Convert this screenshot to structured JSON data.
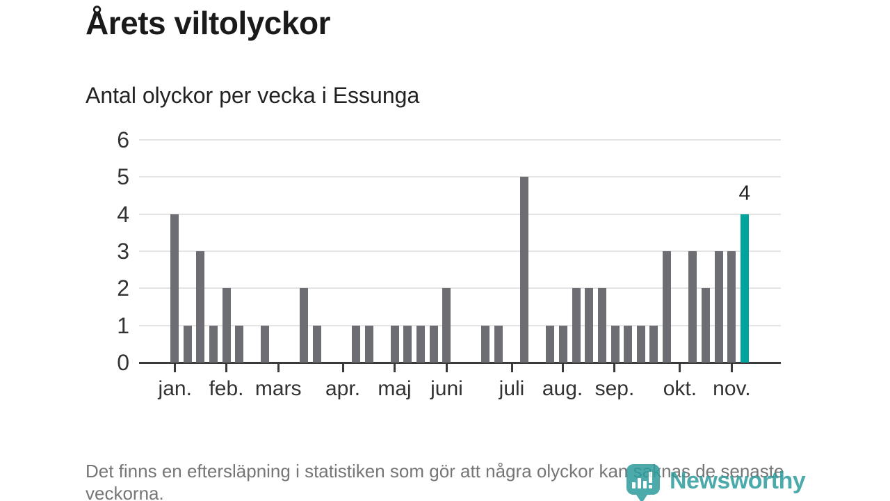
{
  "header": {
    "title": "Årets viltolyckor",
    "subtitle": "Antal olyckor per vecka i Essunga"
  },
  "footer": {
    "note": "Det finns en eftersläpning i statistiken som gör att några olyckor kan saknas de senaste veckorna."
  },
  "branding": {
    "logo_text": "Newsworthy",
    "logo_icon": "newsworthy-speech-bubble-chart-icon",
    "logo_color": "#2d9c9c"
  },
  "colors": {
    "bar": "#6d6d74",
    "highlight": "#00a49c",
    "gridline": "#e4e4e4",
    "axis": "#3a3a3a",
    "axis_text": "#333333",
    "title_text": "#1a1a1a",
    "footer_text": "#767676"
  },
  "chart_data": {
    "type": "bar",
    "title": "Årets viltolyckor",
    "subtitle": "Antal olyckor per vecka i Essunga",
    "xlabel": "",
    "ylabel": "",
    "x_unit": "vecka",
    "weeks": [
      1,
      2,
      3,
      4,
      5,
      6,
      7,
      8,
      9,
      10,
      11,
      12,
      13,
      14,
      15,
      16,
      17,
      18,
      19,
      20,
      21,
      22,
      23,
      24,
      25,
      26,
      27,
      28,
      29,
      30,
      31,
      32,
      33,
      34,
      35,
      36,
      37,
      38,
      39,
      40,
      41,
      42,
      43,
      44,
      45
    ],
    "values": [
      4,
      1,
      3,
      1,
      2,
      1,
      0,
      1,
      0,
      0,
      2,
      1,
      0,
      0,
      1,
      1,
      0,
      1,
      1,
      1,
      1,
      2,
      0,
      0,
      1,
      1,
      0,
      5,
      0,
      1,
      1,
      2,
      2,
      2,
      1,
      1,
      1,
      1,
      3,
      0,
      3,
      2,
      3,
      3,
      4
    ],
    "highlight": {
      "index": 44,
      "label": "4",
      "color": "#00a49c"
    },
    "bar_color": "#6d6d74",
    "ylim": [
      0,
      6
    ],
    "yticks": [
      0,
      1,
      2,
      3,
      4,
      5,
      6
    ],
    "grid": "horizontal",
    "legend": "none",
    "month_ticks": [
      {
        "label": "jan.",
        "week_pos": 1.36
      },
      {
        "label": "feb.",
        "week_pos": 5.32
      },
      {
        "label": "mars",
        "week_pos": 9.33
      },
      {
        "label": "apr.",
        "week_pos": 14.31
      },
      {
        "label": "maj",
        "week_pos": 18.31
      },
      {
        "label": "juni",
        "week_pos": 22.33
      },
      {
        "label": "juli",
        "week_pos": 27.35
      },
      {
        "label": "aug.",
        "week_pos": 31.27
      },
      {
        "label": "sep.",
        "week_pos": 35.29
      },
      {
        "label": "okt.",
        "week_pos": 40.33
      },
      {
        "label": "nov.",
        "week_pos": 44.33
      }
    ]
  }
}
